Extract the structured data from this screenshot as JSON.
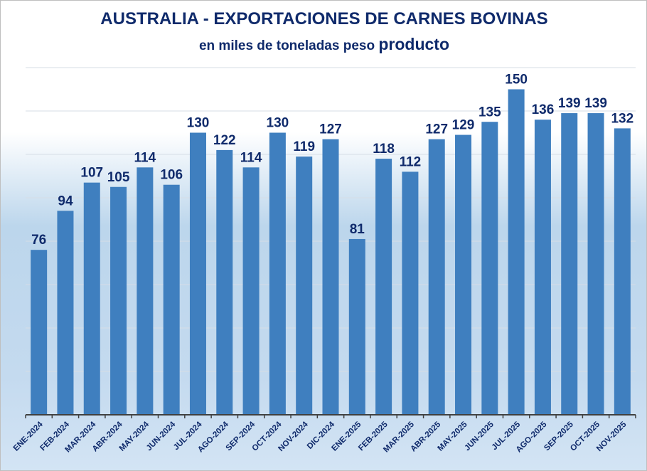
{
  "chart_data": {
    "type": "bar",
    "title": "AUSTRALIA - EXPORTACIONES DE CARNES BOVINAS",
    "subtitle_part1": "en miles de toneladas peso",
    "subtitle_part2": "producto",
    "xlabel": "",
    "ylabel": "",
    "ylim": [
      0,
      160
    ],
    "grid": true,
    "grid_step": 20,
    "categories": [
      "ENE-2024",
      "FEB-2024",
      "MAR-2024",
      "ABR-2024",
      "MAY-2024",
      "JUN-2024",
      "JUL-2024",
      "AGO-2024",
      "SEP-2024",
      "OCT-2024",
      "NOV-2024",
      "DIC-2024",
      "ENE-2025",
      "FEB-2025",
      "MAR-2025",
      "ABR-2025",
      "MAY-2025",
      "JUN-2025",
      "JUL-2025",
      "AGO-2025",
      "SEP-2025",
      "OCT-2025",
      "NOV-2025"
    ],
    "values": [
      76,
      94,
      107,
      105,
      114,
      106,
      130,
      122,
      114,
      130,
      119,
      127,
      81,
      118,
      112,
      127,
      129,
      135,
      150,
      136,
      139,
      139,
      132
    ],
    "bar_color": "#3f7fbf",
    "label_color": "#0f2a6b"
  }
}
